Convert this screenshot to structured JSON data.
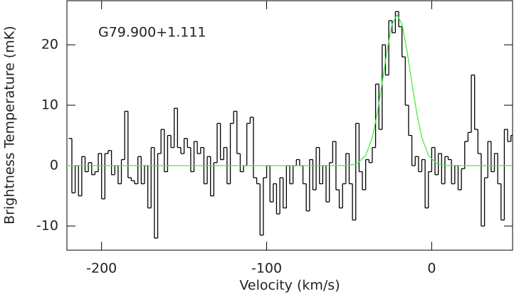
{
  "chart_data": {
    "type": "line",
    "annotation": "G79.900+1.111",
    "xlabel": "Velocity (km/s)",
    "ylabel": "Brightness Temperature (mK)",
    "xlim": [
      -221,
      49
    ],
    "ylim": [
      -14,
      27.3
    ],
    "xticks": [
      -200,
      -100,
      0
    ],
    "yticks": [
      -10,
      0,
      10,
      20
    ],
    "series": [
      {
        "color": "#000000",
        "step": true,
        "x": [
          -219,
          -217,
          -215,
          -213,
          -211,
          -209,
          -207,
          -205,
          -203,
          -201,
          -199,
          -197,
          -195,
          -193,
          -191,
          -189,
          -187,
          -185,
          -183,
          -181,
          -179,
          -177,
          -175,
          -173,
          -171,
          -169,
          -167,
          -165,
          -163,
          -161,
          -159,
          -157,
          -155,
          -153,
          -151,
          -149,
          -147,
          -145,
          -143,
          -141,
          -139,
          -137,
          -135,
          -133,
          -131,
          -129,
          -127,
          -125,
          -123,
          -121,
          -119,
          -117,
          -115,
          -113,
          -111,
          -109,
          -107,
          -105,
          -103,
          -101,
          -99,
          -97,
          -95,
          -93,
          -91,
          -89,
          -87,
          -85,
          -83,
          -81,
          -79,
          -77,
          -75,
          -73,
          -71,
          -69,
          -67,
          -65,
          -63,
          -61,
          -59,
          -57,
          -55,
          -53,
          -51,
          -49,
          -47,
          -45,
          -43,
          -41,
          -39,
          -37,
          -35,
          -33,
          -31,
          -29,
          -27,
          -25,
          -23,
          -21,
          -19,
          -17,
          -15,
          -13,
          -11,
          -9,
          -7,
          -5,
          -3,
          -1,
          1,
          3,
          5,
          7,
          9,
          11,
          13,
          15,
          17,
          19,
          21,
          23,
          25,
          27,
          29,
          31,
          33,
          35,
          37,
          39,
          41,
          43,
          45,
          47,
          49
        ],
        "values": [
          4.5,
          -4.5,
          0,
          -5,
          1.5,
          -1,
          0.5,
          -1.5,
          -1,
          2,
          -5.5,
          2,
          2.5,
          -1.5,
          0,
          -3,
          1,
          9,
          -2,
          -2.5,
          -3,
          1.5,
          -3,
          0,
          -7,
          3,
          -12,
          2,
          6,
          -1,
          5,
          3,
          9.5,
          3,
          2,
          4.5,
          3,
          -1,
          4,
          2,
          3,
          -3,
          1.5,
          -5,
          0.5,
          7,
          1,
          3,
          -3,
          7,
          9,
          2,
          -1,
          0,
          7,
          8,
          -2,
          -3,
          -11.5,
          -2,
          0,
          -6,
          -3,
          -8,
          -2,
          -7,
          0,
          -3,
          0,
          1,
          0,
          -3,
          -7.5,
          1,
          -4,
          3,
          -3,
          0,
          -6,
          0.5,
          4,
          -4,
          -7,
          -3,
          2,
          -3,
          -9,
          7,
          -1,
          -4,
          1,
          0.5,
          3,
          13.5,
          6,
          20,
          15,
          24,
          22,
          25.5,
          23,
          18,
          10,
          5,
          0,
          1.5,
          -1,
          1,
          -7,
          -1,
          3,
          -1.5,
          2,
          -3,
          1.5,
          1,
          -3,
          0,
          -4,
          -0.5,
          4,
          5.5,
          15,
          6,
          2,
          -10,
          -2,
          4,
          -1,
          2,
          -3,
          -9,
          6,
          4,
          5
        ]
      },
      {
        "color": "#44ee44",
        "step": false,
        "x": [
          -221,
          -60,
          -50,
          -45,
          -40,
          -36,
          -33,
          -30,
          -27,
          -24,
          -21,
          -18,
          -15,
          -12,
          -9,
          -6,
          -2,
          3,
          8,
          18,
          49
        ],
        "values": [
          0,
          0,
          0.05,
          0.34,
          1.7,
          4.67,
          8.6,
          13.7,
          19.1,
          23.4,
          25,
          23.4,
          19.1,
          13.7,
          8.6,
          4.67,
          1.7,
          0.34,
          0.05,
          0,
          0
        ]
      }
    ]
  }
}
